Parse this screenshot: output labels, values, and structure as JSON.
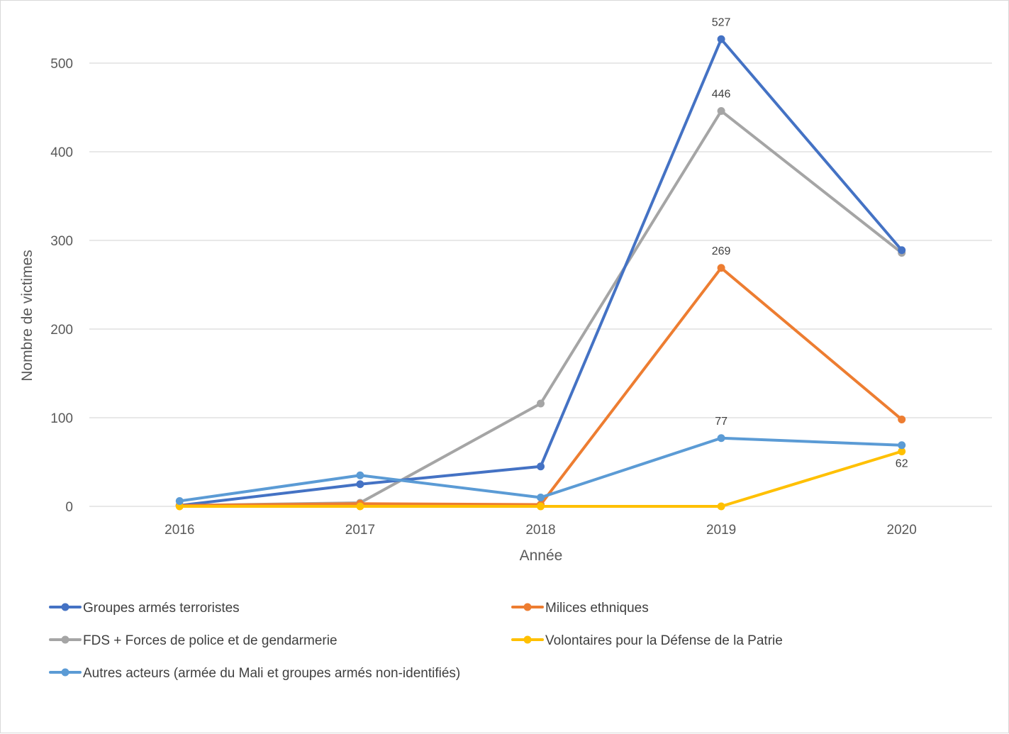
{
  "chart_data": {
    "type": "line",
    "title": "",
    "xlabel": "Année",
    "ylabel": "Nombre de victimes",
    "ylim": [
      0,
      550
    ],
    "yticks": [
      0,
      100,
      200,
      300,
      400,
      500
    ],
    "grid": true,
    "legend_position": "bottom",
    "categories": [
      "2016",
      "2017",
      "2018",
      "2019",
      "2020"
    ],
    "series": [
      {
        "name": "Groupes armés terroristes",
        "color": "#4472C4",
        "values": [
          1,
          25,
          45,
          527,
          289
        ]
      },
      {
        "name": "Milices ethniques",
        "color": "#ED7D31",
        "values": [
          1,
          3,
          2,
          269,
          98
        ]
      },
      {
        "name": "FDS + Forces de police et de gendarmerie",
        "color": "#A5A5A5",
        "values": [
          1,
          4,
          116,
          446,
          286
        ]
      },
      {
        "name": "Volontaires pour la Défense de la Patrie",
        "color": "#FFC000",
        "values": [
          0,
          0,
          0,
          0,
          62
        ]
      },
      {
        "name": "Autres acteurs (armée du Mali et groupes armés non-identifiés)",
        "color": "#5B9BD5",
        "values": [
          6,
          35,
          10,
          77,
          69
        ]
      }
    ],
    "data_labels": [
      {
        "series": 0,
        "index": 3,
        "text": "527",
        "position": "above"
      },
      {
        "series": 2,
        "index": 3,
        "text": "446",
        "position": "above"
      },
      {
        "series": 1,
        "index": 3,
        "text": "269",
        "position": "above"
      },
      {
        "series": 4,
        "index": 3,
        "text": "77",
        "position": "above"
      },
      {
        "series": 3,
        "index": 4,
        "text": "62",
        "position": "below"
      }
    ]
  }
}
